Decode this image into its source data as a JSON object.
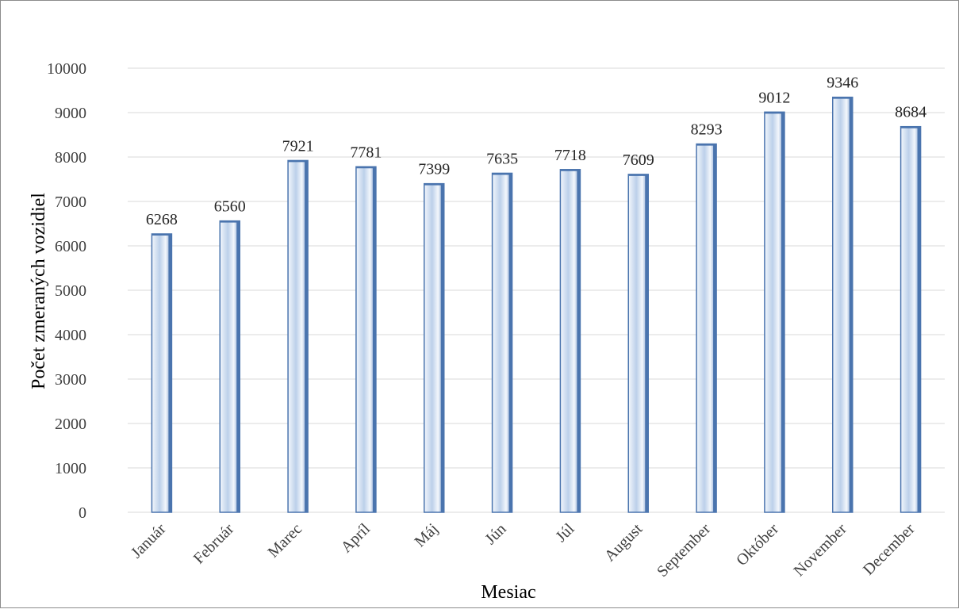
{
  "chart_data": {
    "type": "bar",
    "title": "",
    "xlabel": "Mesiac",
    "ylabel": "Počet zmeraných vozidiel",
    "categories": [
      "Január",
      "Február",
      "Marec",
      "Apríl",
      "Máj",
      "Jún",
      "Júl",
      "August",
      "September",
      "Október",
      "November",
      "December"
    ],
    "values": [
      6268,
      6560,
      7921,
      7781,
      7399,
      7635,
      7718,
      7609,
      8293,
      9012,
      9346,
      8684
    ],
    "ylim": [
      0,
      10000
    ],
    "yticks": [
      "0",
      "1000",
      "2000",
      "3000",
      "4000",
      "5000",
      "6000",
      "7000",
      "8000",
      "9000",
      "10000"
    ],
    "grid": "horizontal",
    "legend": "none",
    "data_labels": true,
    "colors": {
      "bar_outline": "#4a74ae",
      "bar_light": "#f3f7fc",
      "bar_mid": "#bcd0ea",
      "bar_shade": "#6f93c8",
      "gridline": "#d9d9d9",
      "axis_text": "#404040",
      "label_text": "#262626"
    }
  }
}
